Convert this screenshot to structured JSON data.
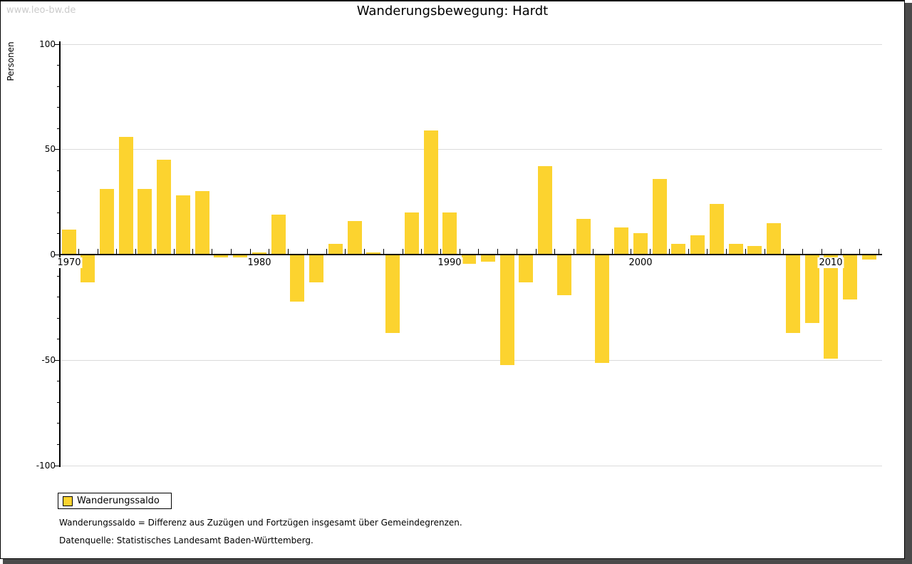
{
  "watermark": "www.leo-bw.de",
  "title": "Wanderungsbewegung: Hardt",
  "legend": {
    "label": "Wanderungssaldo"
  },
  "footnotes": {
    "definition": "Wanderungssaldo = Differenz aus Zuzügen und Fortzügen insgesamt über Gemeindegrenzen.",
    "source": "Datenquelle: Statistisches Landesamt Baden-Württemberg."
  },
  "colors": {
    "bar": "#fcd32f",
    "grid": "#dbdbdb",
    "axis": "#000000",
    "watermark": "#cbcbcb",
    "shadow": "#4a4a4a"
  },
  "chart_data": {
    "type": "bar",
    "title": "Wanderungsbewegung: Hardt",
    "ylabel": "Personen",
    "xlabel": "",
    "series_name": "Wanderungssaldo",
    "ylim": [
      -100,
      100
    ],
    "ytick_labels": [
      100,
      50,
      0,
      -50,
      -100
    ],
    "ytick_minor_step": 10,
    "grid_values": [
      100,
      50,
      -50,
      -100
    ],
    "xtick_label_years": [
      1970,
      1980,
      1990,
      2000,
      2010
    ],
    "legend_position": "bottom-left",
    "x": [
      1970,
      1971,
      1972,
      1973,
      1974,
      1975,
      1976,
      1977,
      1978,
      1979,
      1980,
      1981,
      1982,
      1983,
      1984,
      1985,
      1986,
      1987,
      1988,
      1989,
      1990,
      1991,
      1992,
      1993,
      1994,
      1995,
      1996,
      1997,
      1998,
      1999,
      2000,
      2001,
      2002,
      2003,
      2004,
      2005,
      2006,
      2007,
      2008,
      2009,
      2010,
      2011,
      2012
    ],
    "values": [
      12,
      -13,
      31,
      56,
      31,
      45,
      28,
      30,
      -1,
      -1,
      1,
      19,
      -22,
      -13,
      5,
      16,
      1,
      -37,
      20,
      59,
      20,
      -4,
      -3,
      -52,
      -13,
      42,
      -19,
      17,
      -51,
      13,
      10,
      36,
      5,
      9,
      24,
      5,
      4,
      15,
      -37,
      -32,
      -49,
      -21,
      -2
    ]
  }
}
